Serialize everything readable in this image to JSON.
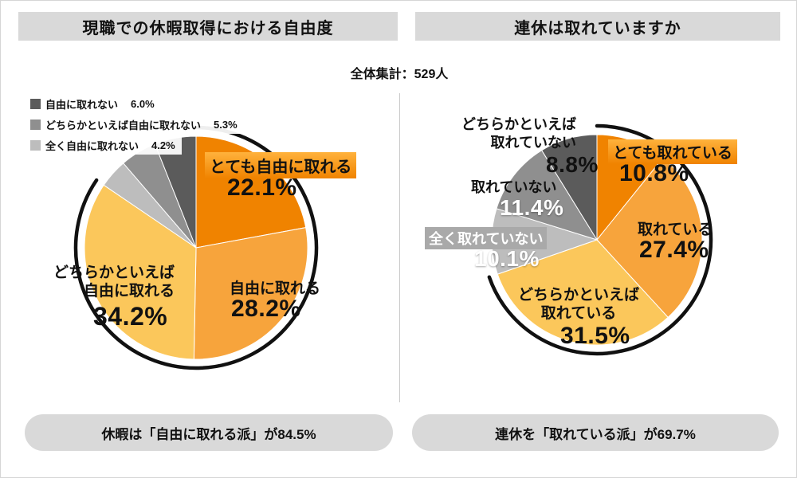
{
  "titles": {
    "left": "現職での休暇取得における自由度",
    "right": "連休は取れていますか"
  },
  "total_label": "全体集計：529人",
  "colors": {
    "title_bar_bg": "#d9d9d9",
    "pill_bg": "#d9d9d9",
    "highlight_marker": "#f08300",
    "arc": "#111111"
  },
  "chart_data": [
    {
      "type": "pie",
      "title": "現職での休暇取得における自由度",
      "start_angle": "top",
      "direction": "clockwise",
      "highlight_arc_percent": 84.5,
      "slices": [
        {
          "label": "とても自由に取れる",
          "value": 22.1,
          "pct": "22.1%",
          "color": "#F08300",
          "emphasis": "orange-marker"
        },
        {
          "label": "自由に取れる",
          "value": 28.2,
          "pct": "28.2%",
          "color": "#F7A43C"
        },
        {
          "label": "どちらかといえば自由に取れる",
          "label_lines": [
            "どちらかといえば",
            "自由に取れる"
          ],
          "value": 34.2,
          "pct": "34.2%",
          "color": "#FBC75B"
        },
        {
          "label": "全く自由に取れない",
          "value": 4.2,
          "pct": "4.2%",
          "color": "#BDBDBD"
        },
        {
          "label": "どちらかといえば自由に取れない",
          "value": 5.3,
          "pct": "5.3%",
          "color": "#8F8F8F"
        },
        {
          "label": "自由に取れない",
          "value": 6.0,
          "pct": "6.0%",
          "color": "#5B5B5B"
        }
      ],
      "summary": "休暇は「自由に取れる派」が84.5%"
    },
    {
      "type": "pie",
      "title": "連休は取れていますか",
      "start_angle": "top",
      "direction": "clockwise",
      "highlight_arc_percent": 69.7,
      "slices": [
        {
          "label": "とても取れている",
          "value": 10.8,
          "pct": "10.8%",
          "color": "#F08300",
          "emphasis": "orange-marker"
        },
        {
          "label": "取れている",
          "value": 27.4,
          "pct": "27.4%",
          "color": "#F7A43C"
        },
        {
          "label": "どちらかといえば取れている",
          "label_lines": [
            "どちらかといえば",
            "取れている"
          ],
          "value": 31.5,
          "pct": "31.5%",
          "color": "#FBC75B"
        },
        {
          "label": "全く取れていない",
          "value": 10.1,
          "pct": "10.1%",
          "color": "#BDBDBD"
        },
        {
          "label": "取れていない",
          "value": 11.4,
          "pct": "11.4%",
          "color": "#8F8F8F"
        },
        {
          "label": "どちらかといえば取れていない",
          "label_lines": [
            "どちらかといえば",
            "取れていない"
          ],
          "value": 8.8,
          "pct": "8.8%",
          "color": "#5B5B5B"
        }
      ],
      "summary": "連休を「取れている派」が69.7%"
    }
  ]
}
